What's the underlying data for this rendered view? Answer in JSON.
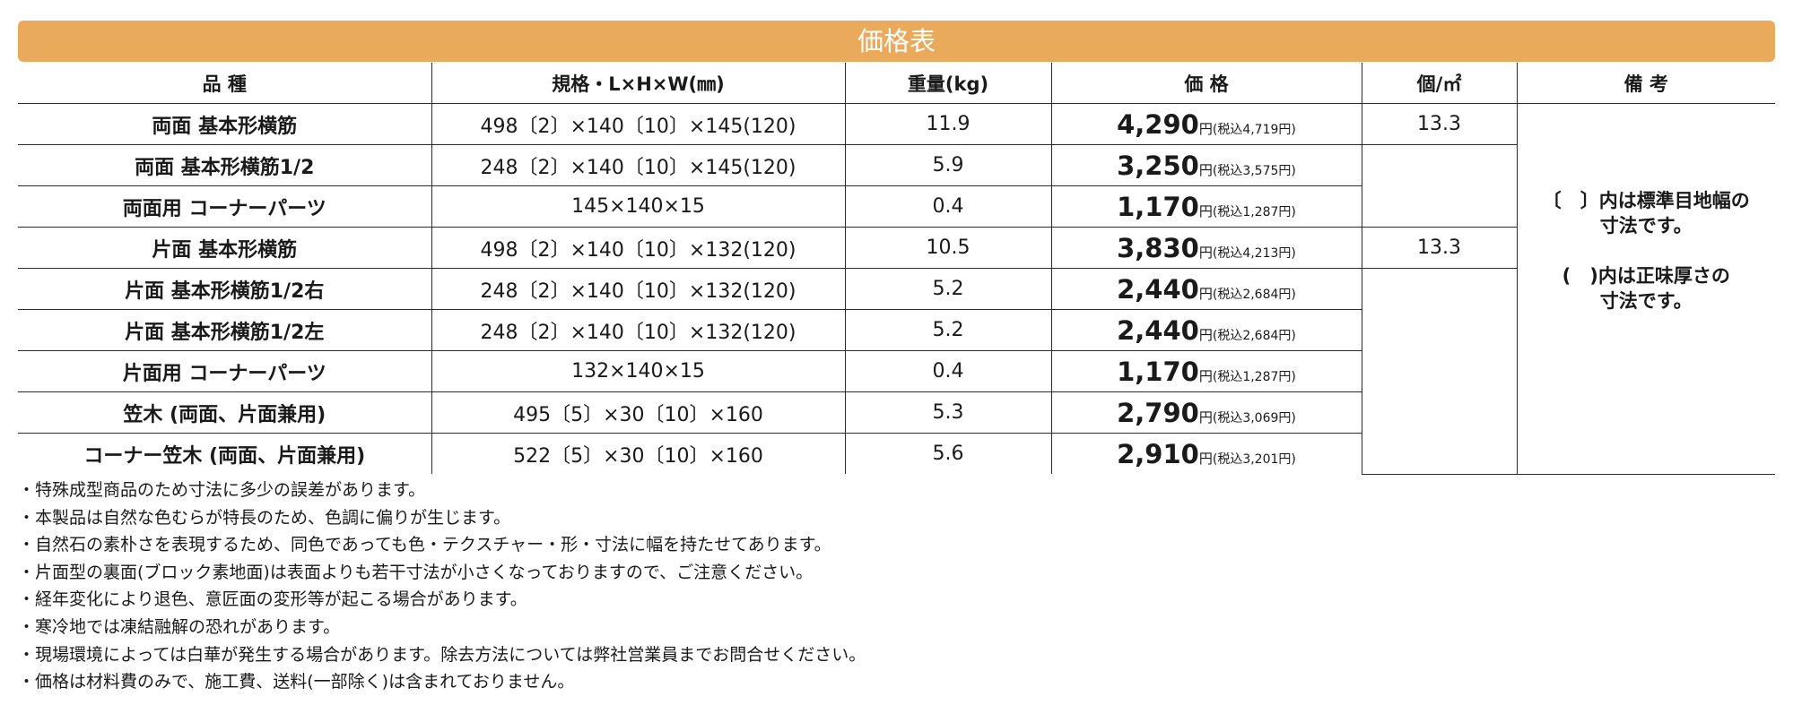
{
  "title": "価格表",
  "table": {
    "headers": [
      "品 種",
      "規格・L×H×W(㎜)",
      "重量(kg)",
      "価 格",
      "個/㎡",
      "備 考"
    ],
    "yen": "円",
    "rows": [
      {
        "name": "両面 基本形横筋",
        "spec": "498〔2〕×140〔10〕×145(120)",
        "weight": "11.9",
        "price": "4,290",
        "tax": "(税込4,719円)",
        "per_m2": "13.3"
      },
      {
        "name": "両面 基本形横筋1/2",
        "spec": "248〔2〕×140〔10〕×145(120)",
        "weight": "5.9",
        "price": "3,250",
        "tax": "(税込3,575円)"
      },
      {
        "name": "両面用 コーナーパーツ",
        "spec": "145×140×15",
        "weight": "0.4",
        "price": "1,170",
        "tax": "(税込1,287円)"
      },
      {
        "name": "片面 基本形横筋",
        "spec": "498〔2〕×140〔10〕×132(120)",
        "weight": "10.5",
        "price": "3,830",
        "tax": "(税込4,213円)",
        "per_m2": "13.3"
      },
      {
        "name": "片面 基本形横筋1/2右",
        "spec": "248〔2〕×140〔10〕×132(120)",
        "weight": "5.2",
        "price": "2,440",
        "tax": "(税込2,684円)"
      },
      {
        "name": "片面 基本形横筋1/2左",
        "spec": "248〔2〕×140〔10〕×132(120)",
        "weight": "5.2",
        "price": "2,440",
        "tax": "(税込2,684円)"
      },
      {
        "name": "片面用 コーナーパーツ",
        "spec": "132×140×15",
        "weight": "0.4",
        "price": "1,170",
        "tax": "(税込1,287円)"
      },
      {
        "name": "笠木 (両面、片面兼用)",
        "spec": "495〔5〕×30〔10〕×160",
        "weight": "5.3",
        "price": "2,790",
        "tax": "(税込3,069円)"
      },
      {
        "name": "コーナー笠木 (両面、片面兼用)",
        "spec": "522〔5〕×30〔10〕×160",
        "weight": "5.6",
        "price": "2,910",
        "tax": "(税込3,201円)"
      }
    ],
    "remarks": {
      "line1": "〔　〕内は標準目地幅の",
      "line2": "寸法です。",
      "line3": "(　)内は正味厚さの",
      "line4": "寸法です。"
    }
  },
  "notes": [
    "・特殊成型商品のため寸法に多少の誤差があります。",
    "・本製品は自然な色むらが特長のため、色調に偏りが生じます。",
    "・自然石の素朴さを表現するため、同色であっても色・テクスチャー・形・寸法に幅を持たせてあります。",
    "・片面型の裏面(ブロック素地面)は表面よりも若干寸法が小さくなっておりますので、ご注意ください。",
    "・経年変化により退色、意匠面の変形等が起こる場合があります。",
    "・寒冷地では凍結融解の恐れがあります。",
    "・現場環境によっては白華が発生する場合があります。除去方法については弊社営業員までお問合せください。",
    "・価格は材料費のみで、施工費、送料(一部除く)は含まれておりません。"
  ],
  "colors": {
    "title_bar": "#e9aa5b",
    "border": "#2b2b2b",
    "text": "#1a1a1a"
  }
}
